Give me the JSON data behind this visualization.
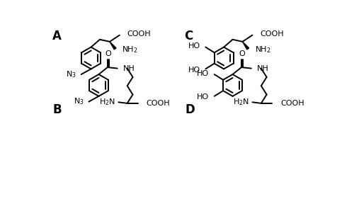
{
  "bg_color": "#ffffff",
  "label_A": "A",
  "label_B": "B",
  "label_C": "C",
  "label_D": "D",
  "label_fontsize": 12,
  "chem_fontsize": 8,
  "line_width": 1.4
}
